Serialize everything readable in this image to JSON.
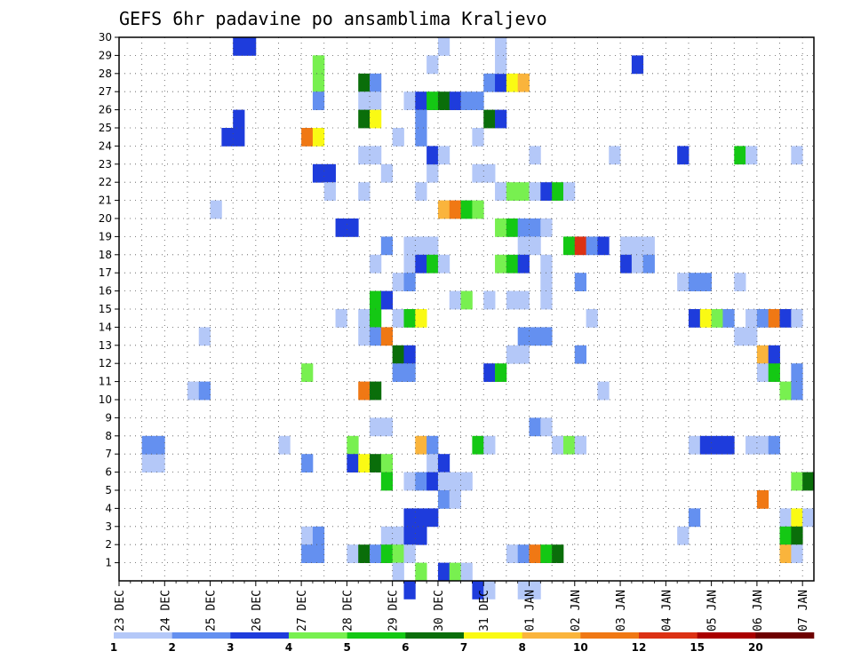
{
  "chart_data": {
    "type": "heatmap",
    "title": "GEFS 6hr padavine po ansamblima Kraljevo",
    "xlabel": "",
    "ylabel": "",
    "x_ticks": [
      "23 DEC",
      "24 DEC",
      "25 DEC",
      "26 DEC",
      "27 DEC",
      "28 DEC",
      "29 DEC",
      "30 DEC",
      "31 DEC",
      "01 JAN",
      "02 JAN",
      "03 JAN",
      "04 JAN",
      "05 JAN",
      "06 JAN",
      "07 JAN"
    ],
    "x_steps": 61,
    "steps_per_day": 4,
    "y_ticks": [
      1,
      2,
      3,
      4,
      5,
      6,
      7,
      8,
      9,
      10,
      11,
      12,
      13,
      14,
      15,
      16,
      17,
      18,
      19,
      20,
      21,
      22,
      23,
      24,
      25,
      26,
      27,
      28,
      29,
      30
    ],
    "ylim": [
      0,
      30
    ],
    "grid": true,
    "colorbar": {
      "labels": [
        "1",
        "2",
        "3",
        "4",
        "5",
        "6",
        "7",
        "8",
        "10",
        "12",
        "15",
        "20"
      ],
      "colors": [
        "#b4c8f8",
        "#6490f0",
        "#1e3cdc",
        "#78f050",
        "#14c814",
        "#0a6e0a",
        "#fafa14",
        "#fab43c",
        "#f07814",
        "#dc3214",
        "#aa0000",
        "#6e0000"
      ]
    },
    "cells": [
      [
        7,
        2,
        1
      ],
      [
        7,
        3,
        1
      ],
      [
        8,
        2,
        2
      ],
      [
        8,
        3,
        2
      ],
      [
        25,
        9,
        3
      ],
      [
        25,
        10,
        3
      ],
      [
        26,
        10,
        3
      ],
      [
        30,
        11,
        3
      ],
      [
        30,
        10,
        3
      ],
      [
        28,
        17,
        4
      ],
      [
        29,
        17,
        5
      ],
      [
        27,
        17,
        2
      ],
      [
        23,
        18,
        3
      ],
      [
        22,
        18,
        1
      ],
      [
        25,
        24,
        1
      ],
      [
        22,
        21,
        1
      ],
      [
        24,
        21,
        1
      ],
      [
        24,
        22,
        1
      ],
      [
        30,
        28,
        1
      ],
      [
        30,
        33,
        1
      ],
      [
        25,
        16,
        9
      ],
      [
        25,
        17,
        7
      ],
      [
        28,
        21,
        6
      ],
      [
        28,
        22,
        2
      ],
      [
        27,
        21,
        1
      ],
      [
        27,
        22,
        1
      ],
      [
        26,
        21,
        6
      ],
      [
        26,
        22,
        7
      ],
      [
        27,
        25,
        1
      ],
      [
        27,
        26,
        3
      ],
      [
        27,
        27,
        5
      ],
      [
        27,
        28,
        6
      ],
      [
        27,
        29,
        3
      ],
      [
        27,
        30,
        2
      ],
      [
        27,
        31,
        2
      ],
      [
        26,
        26,
        2
      ],
      [
        26,
        32,
        6
      ],
      [
        26,
        33,
        3
      ],
      [
        28,
        32,
        2
      ],
      [
        28,
        33,
        3
      ],
      [
        28,
        34,
        7
      ],
      [
        28,
        35,
        8
      ],
      [
        29,
        17,
        4
      ],
      [
        23,
        17,
        3
      ],
      [
        23,
        23,
        1
      ],
      [
        23,
        27,
        1
      ],
      [
        23,
        31,
        1
      ],
      [
        23,
        32,
        1
      ],
      [
        24,
        27,
        3
      ],
      [
        24,
        28,
        1
      ],
      [
        24,
        36,
        1
      ],
      [
        25,
        26,
        2
      ],
      [
        25,
        31,
        1
      ],
      [
        22,
        26,
        1
      ],
      [
        22,
        33,
        1
      ],
      [
        22,
        34,
        4
      ],
      [
        22,
        35,
        4
      ],
      [
        22,
        36,
        1
      ],
      [
        22,
        37,
        3
      ],
      [
        22,
        38,
        5
      ],
      [
        22,
        39,
        1
      ],
      [
        21,
        8,
        1
      ],
      [
        21,
        28,
        8
      ],
      [
        21,
        29,
        9
      ],
      [
        21,
        30,
        5
      ],
      [
        21,
        31,
        4
      ],
      [
        20,
        19,
        3
      ],
      [
        20,
        20,
        3
      ],
      [
        20,
        33,
        4
      ],
      [
        20,
        34,
        5
      ],
      [
        20,
        35,
        2
      ],
      [
        20,
        36,
        2
      ],
      [
        20,
        37,
        1
      ],
      [
        19,
        23,
        2
      ],
      [
        19,
        25,
        1
      ],
      [
        19,
        26,
        1
      ],
      [
        19,
        27,
        1
      ],
      [
        19,
        35,
        1
      ],
      [
        19,
        36,
        1
      ],
      [
        19,
        39,
        5
      ],
      [
        19,
        40,
        10
      ],
      [
        19,
        41,
        2
      ],
      [
        19,
        42,
        3
      ],
      [
        19,
        44,
        1
      ],
      [
        19,
        45,
        1
      ],
      [
        19,
        46,
        1
      ],
      [
        18,
        22,
        1
      ],
      [
        18,
        25,
        1
      ],
      [
        18,
        26,
        3
      ],
      [
        18,
        27,
        5
      ],
      [
        18,
        28,
        1
      ],
      [
        18,
        33,
        4
      ],
      [
        18,
        34,
        5
      ],
      [
        18,
        35,
        3
      ],
      [
        18,
        37,
        1
      ],
      [
        18,
        44,
        3
      ],
      [
        18,
        45,
        1
      ],
      [
        18,
        46,
        2
      ],
      [
        17,
        24,
        1
      ],
      [
        17,
        25,
        2
      ],
      [
        17,
        37,
        1
      ],
      [
        17,
        40,
        2
      ],
      [
        17,
        49,
        1
      ],
      [
        17,
        50,
        2
      ],
      [
        17,
        51,
        2
      ],
      [
        17,
        54,
        1
      ],
      [
        16,
        22,
        5
      ],
      [
        16,
        23,
        3
      ],
      [
        16,
        29,
        1
      ],
      [
        16,
        30,
        4
      ],
      [
        16,
        32,
        1
      ],
      [
        16,
        34,
        1
      ],
      [
        16,
        35,
        1
      ],
      [
        16,
        37,
        1
      ],
      [
        15,
        19,
        1
      ],
      [
        15,
        21,
        1
      ],
      [
        15,
        22,
        5
      ],
      [
        15,
        24,
        1
      ],
      [
        15,
        25,
        5
      ],
      [
        15,
        26,
        7
      ],
      [
        15,
        41,
        1
      ],
      [
        15,
        50,
        3
      ],
      [
        15,
        51,
        7
      ],
      [
        15,
        52,
        4
      ],
      [
        15,
        53,
        2
      ],
      [
        15,
        55,
        1
      ],
      [
        15,
        56,
        2
      ],
      [
        15,
        57,
        9
      ],
      [
        15,
        58,
        3
      ],
      [
        15,
        59,
        1
      ],
      [
        14,
        7,
        1
      ],
      [
        14,
        21,
        1
      ],
      [
        14,
        22,
        2
      ],
      [
        14,
        23,
        9
      ],
      [
        14,
        35,
        2
      ],
      [
        14,
        36,
        2
      ],
      [
        14,
        37,
        2
      ],
      [
        14,
        54,
        1
      ],
      [
        14,
        55,
        1
      ],
      [
        13,
        24,
        6
      ],
      [
        13,
        25,
        3
      ],
      [
        13,
        34,
        1
      ],
      [
        13,
        35,
        1
      ],
      [
        13,
        40,
        2
      ],
      [
        13,
        56,
        8
      ],
      [
        13,
        57,
        3
      ],
      [
        12,
        16,
        4
      ],
      [
        12,
        24,
        2
      ],
      [
        12,
        25,
        2
      ],
      [
        12,
        32,
        3
      ],
      [
        12,
        33,
        5
      ],
      [
        12,
        56,
        1
      ],
      [
        12,
        57,
        5
      ],
      [
        12,
        59,
        2
      ],
      [
        11,
        6,
        1
      ],
      [
        11,
        7,
        2
      ],
      [
        11,
        21,
        9
      ],
      [
        11,
        22,
        6
      ],
      [
        11,
        42,
        1
      ],
      [
        11,
        58,
        4
      ],
      [
        11,
        59,
        2
      ],
      [
        9,
        22,
        1
      ],
      [
        9,
        23,
        1
      ],
      [
        9,
        36,
        2
      ],
      [
        9,
        37,
        1
      ],
      [
        8,
        14,
        1
      ],
      [
        8,
        20,
        4
      ],
      [
        8,
        26,
        8
      ],
      [
        8,
        27,
        2
      ],
      [
        8,
        31,
        5
      ],
      [
        8,
        32,
        1
      ],
      [
        8,
        38,
        1
      ],
      [
        8,
        39,
        4
      ],
      [
        8,
        40,
        1
      ],
      [
        8,
        50,
        1
      ],
      [
        8,
        51,
        3
      ],
      [
        8,
        52,
        3
      ],
      [
        8,
        53,
        3
      ],
      [
        8,
        55,
        1
      ],
      [
        8,
        56,
        1
      ],
      [
        8,
        57,
        2
      ],
      [
        7,
        16,
        2
      ],
      [
        7,
        20,
        3
      ],
      [
        7,
        21,
        7
      ],
      [
        7,
        22,
        6
      ],
      [
        7,
        23,
        4
      ],
      [
        7,
        27,
        1
      ],
      [
        7,
        28,
        3
      ],
      [
        6,
        23,
        5
      ],
      [
        6,
        25,
        1
      ],
      [
        6,
        26,
        2
      ],
      [
        6,
        27,
        3
      ],
      [
        6,
        28,
        1
      ],
      [
        6,
        29,
        1
      ],
      [
        6,
        30,
        1
      ],
      [
        6,
        59,
        4
      ],
      [
        6,
        60,
        6
      ],
      [
        5,
        28,
        2
      ],
      [
        5,
        29,
        1
      ],
      [
        5,
        56,
        9
      ],
      [
        4,
        25,
        3
      ],
      [
        4,
        26,
        3
      ],
      [
        4,
        27,
        3
      ],
      [
        4,
        50,
        2
      ],
      [
        4,
        58,
        1
      ],
      [
        4,
        59,
        7
      ],
      [
        4,
        60,
        1
      ],
      [
        3,
        16,
        1
      ],
      [
        3,
        17,
        2
      ],
      [
        3,
        23,
        1
      ],
      [
        3,
        24,
        1
      ],
      [
        3,
        25,
        3
      ],
      [
        3,
        26,
        3
      ],
      [
        3,
        49,
        1
      ],
      [
        3,
        58,
        5
      ],
      [
        3,
        59,
        6
      ],
      [
        2,
        16,
        2
      ],
      [
        2,
        17,
        2
      ],
      [
        2,
        20,
        1
      ],
      [
        2,
        21,
        6
      ],
      [
        2,
        22,
        2
      ],
      [
        2,
        23,
        5
      ],
      [
        2,
        24,
        4
      ],
      [
        2,
        25,
        1
      ],
      [
        2,
        34,
        1
      ],
      [
        2,
        35,
        2
      ],
      [
        2,
        36,
        9
      ],
      [
        2,
        37,
        5
      ],
      [
        2,
        38,
        6
      ],
      [
        2,
        58,
        8
      ],
      [
        2,
        59,
        1
      ],
      [
        1,
        24,
        1
      ],
      [
        1,
        26,
        4
      ],
      [
        1,
        28,
        3
      ],
      [
        1,
        29,
        4
      ],
      [
        1,
        30,
        1
      ],
      [
        0,
        25,
        3
      ],
      [
        0,
        31,
        3
      ],
      [
        0,
        32,
        1
      ],
      [
        0,
        35,
        1
      ],
      [
        0,
        36,
        1
      ],
      [
        29,
        27,
        1
      ],
      [
        29,
        33,
        1
      ],
      [
        29,
        45,
        3
      ],
      [
        24,
        43,
        1
      ],
      [
        24,
        49,
        3
      ],
      [
        24,
        54,
        5
      ],
      [
        24,
        55,
        1
      ],
      [
        24,
        59,
        1
      ]
    ]
  }
}
